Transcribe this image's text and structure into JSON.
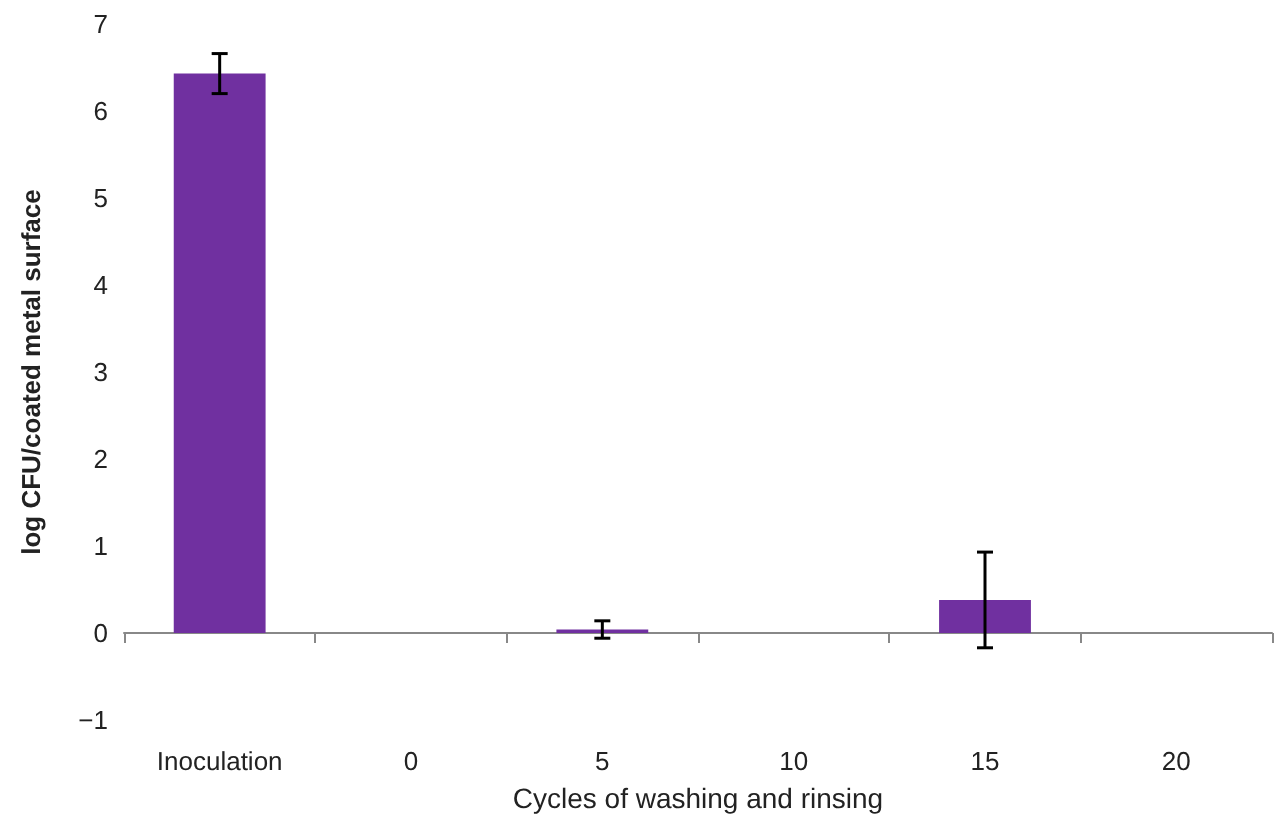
{
  "chart_data": {
    "type": "bar",
    "xlabel": "Cycles of washing and rinsing",
    "ylabel": "log CFU/coated metal surface",
    "categories": [
      "Inoculation",
      "0",
      "5",
      "10",
      "15",
      "20"
    ],
    "values": [
      6.43,
      0,
      0.04,
      0,
      0.38,
      0
    ],
    "errors": [
      0.23,
      null,
      0.1,
      null,
      0.55,
      null
    ],
    "color": "#7030a0",
    "ylim": [
      -1,
      7
    ],
    "yticks": [
      {
        "value": -1,
        "label": "−1"
      },
      0,
      1,
      2,
      3,
      4,
      5,
      6,
      7
    ]
  }
}
